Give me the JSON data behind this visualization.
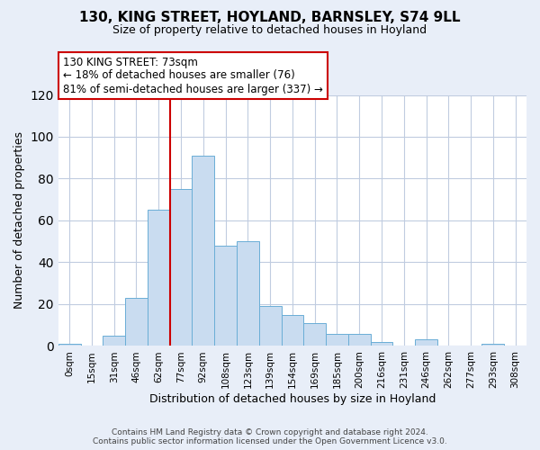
{
  "title": "130, KING STREET, HOYLAND, BARNSLEY, S74 9LL",
  "subtitle": "Size of property relative to detached houses in Hoyland",
  "xlabel": "Distribution of detached houses by size in Hoyland",
  "ylabel": "Number of detached properties",
  "bar_labels": [
    "0sqm",
    "15sqm",
    "31sqm",
    "46sqm",
    "62sqm",
    "77sqm",
    "92sqm",
    "108sqm",
    "123sqm",
    "139sqm",
    "154sqm",
    "169sqm",
    "185sqm",
    "200sqm",
    "216sqm",
    "231sqm",
    "246sqm",
    "262sqm",
    "277sqm",
    "293sqm",
    "308sqm"
  ],
  "bar_values": [
    1,
    0,
    5,
    23,
    65,
    75,
    91,
    48,
    50,
    19,
    15,
    11,
    6,
    6,
    2,
    0,
    3,
    0,
    0,
    1,
    0
  ],
  "bar_color": "#c9dcf0",
  "bar_edge_color": "#6aaed6",
  "ylim": [
    0,
    120
  ],
  "yticks": [
    0,
    20,
    40,
    60,
    80,
    100,
    120
  ],
  "marker_label": "130 KING STREET: 73sqm",
  "annotation_line1": "← 18% of detached houses are smaller (76)",
  "annotation_line2": "81% of semi-detached houses are larger (337) →",
  "annotation_box_color": "#ffffff",
  "annotation_box_edge_color": "#cc0000",
  "marker_line_color": "#cc0000",
  "footer_line1": "Contains HM Land Registry data © Crown copyright and database right 2024.",
  "footer_line2": "Contains public sector information licensed under the Open Government Licence v3.0.",
  "background_color": "#e8eef8",
  "plot_background_color": "#ffffff",
  "grid_color": "#c0cce0",
  "title_fontsize": 11,
  "subtitle_fontsize": 9,
  "ylabel_fontsize": 9,
  "xlabel_fontsize": 9,
  "tick_fontsize": 7.5,
  "annotation_fontsize": 8.5,
  "footer_fontsize": 6.5
}
